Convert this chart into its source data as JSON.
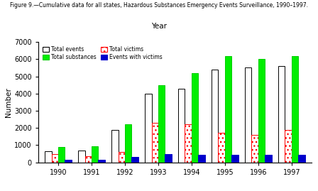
{
  "years": [
    "1990",
    "1991",
    "1992",
    "1993",
    "1994",
    "1995",
    "1996",
    "1997"
  ],
  "total_events": [
    650,
    700,
    1900,
    4000,
    4300,
    5400,
    5500,
    5600
  ],
  "total_victims": [
    500,
    350,
    600,
    2300,
    2200,
    1700,
    1600,
    1900
  ],
  "total_substances": [
    900,
    950,
    2200,
    4500,
    5200,
    6200,
    6000,
    6200
  ],
  "events_with_victims": [
    150,
    150,
    300,
    500,
    450,
    450,
    420,
    420
  ],
  "ylim": [
    0,
    7000
  ],
  "yticks": [
    0,
    1000,
    2000,
    3000,
    4000,
    5000,
    6000,
    7000
  ],
  "ylabel": "Number",
  "xlabel": "Year",
  "title_line1": "Figure 9.—Cumulative data for all states, Hazardous Substances Emergency Events Surveillance, 1990–1997.",
  "title_line2": "Year"
}
